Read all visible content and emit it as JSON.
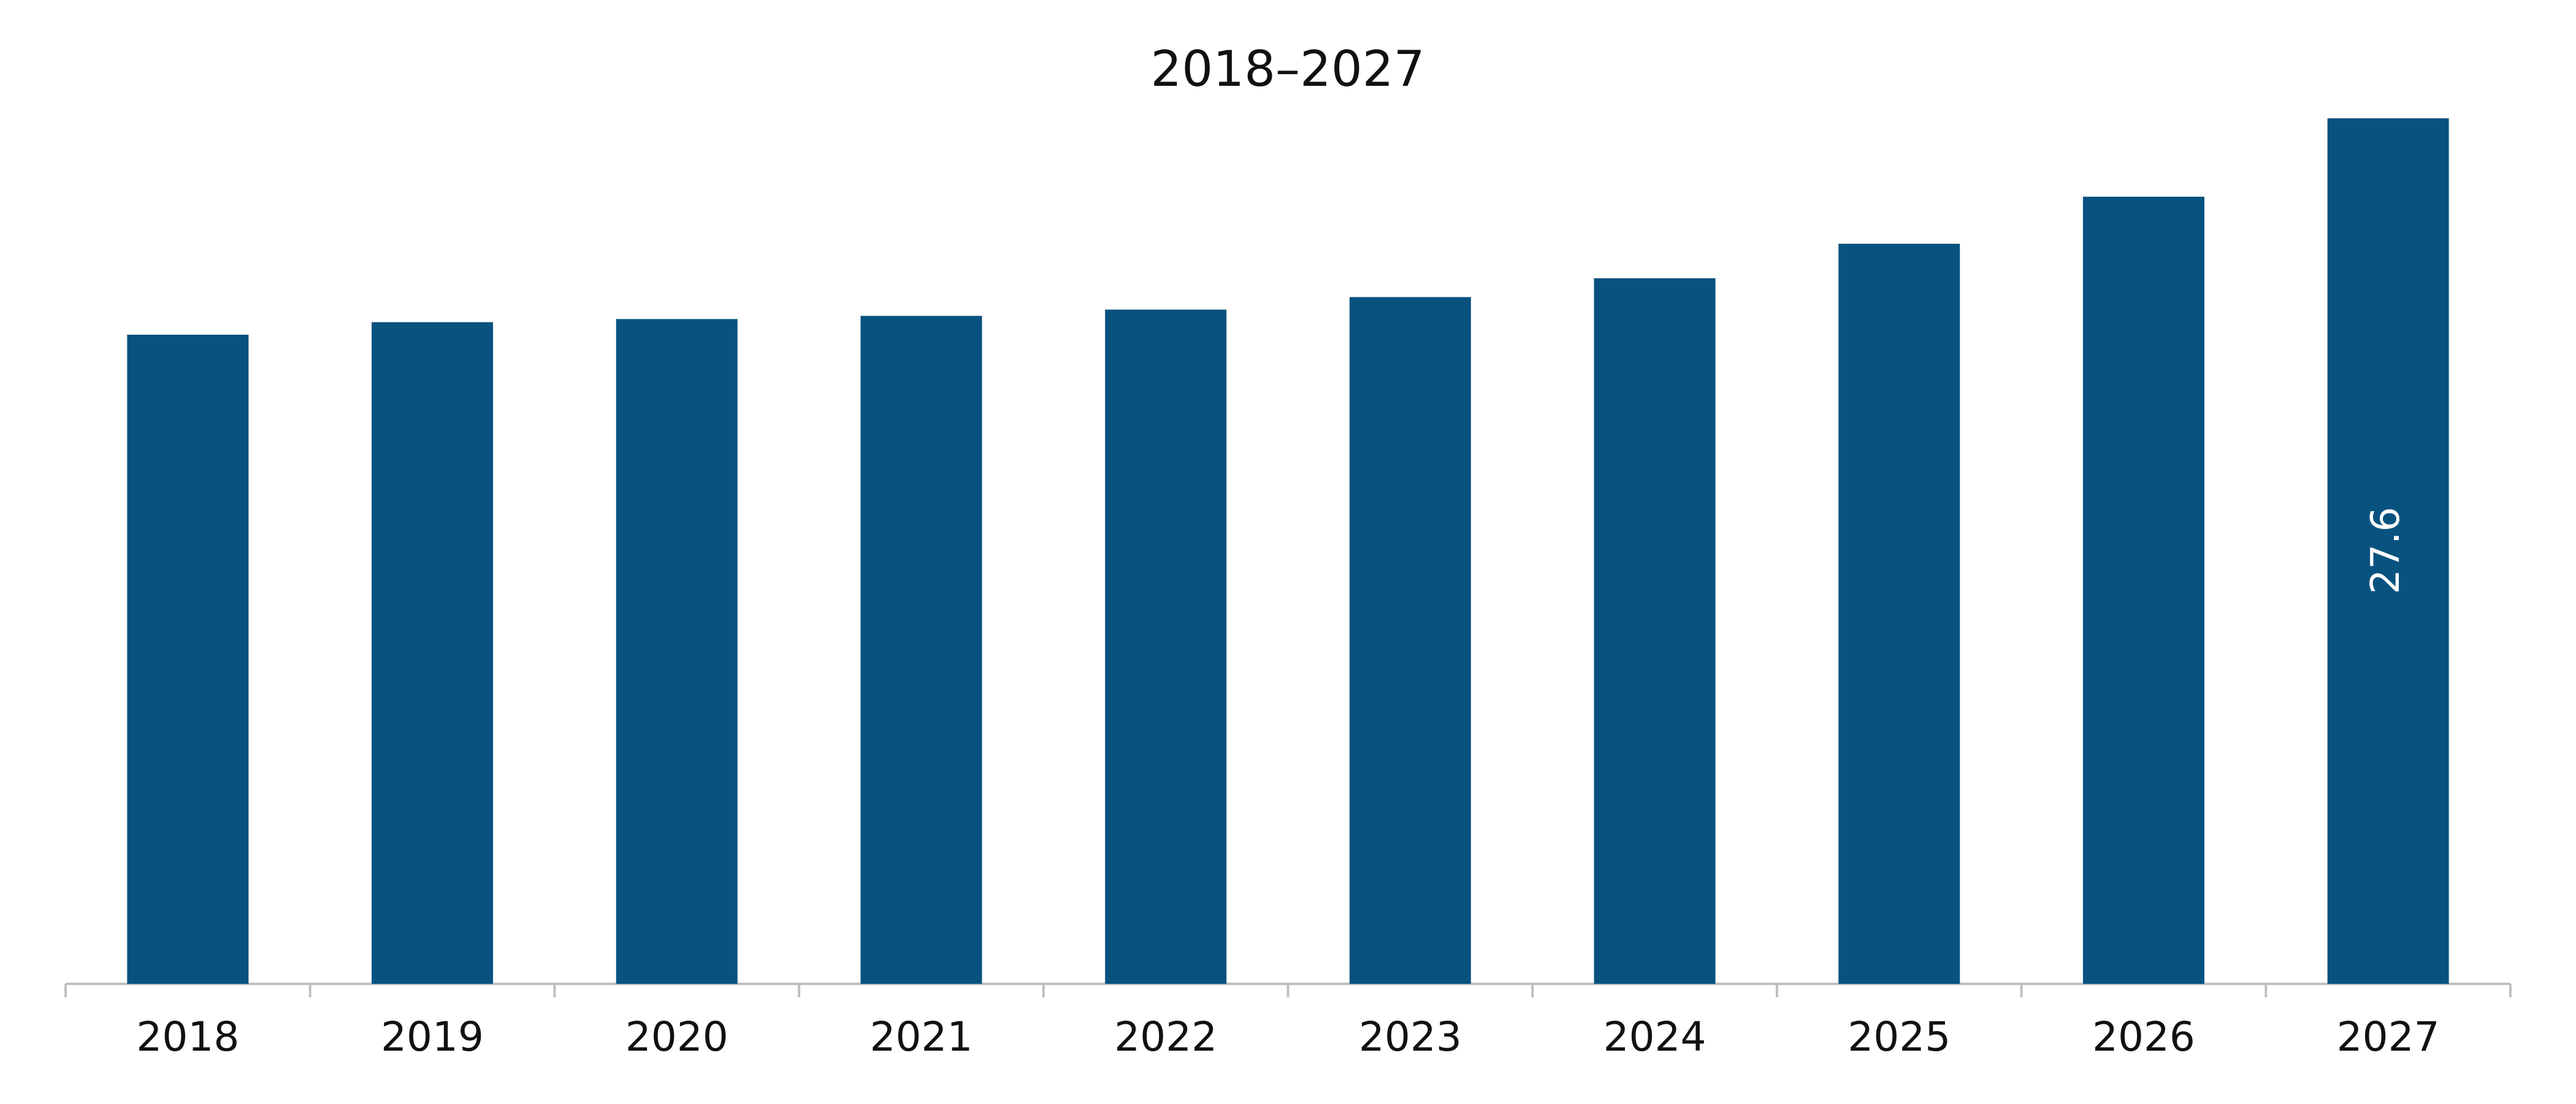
{
  "chart_data": {
    "type": "bar",
    "title": "2018–2027",
    "categories": [
      "2018",
      "2019",
      "2020",
      "2021",
      "2022",
      "2023",
      "2024",
      "2025",
      "2026",
      "2027"
    ],
    "values": [
      20.7,
      21.1,
      21.2,
      21.3,
      21.5,
      21.9,
      22.5,
      23.6,
      25.1,
      27.6
    ],
    "value_labels": [
      null,
      null,
      null,
      null,
      null,
      null,
      null,
      null,
      null,
      "27.6"
    ],
    "color": "#08527f"
  }
}
